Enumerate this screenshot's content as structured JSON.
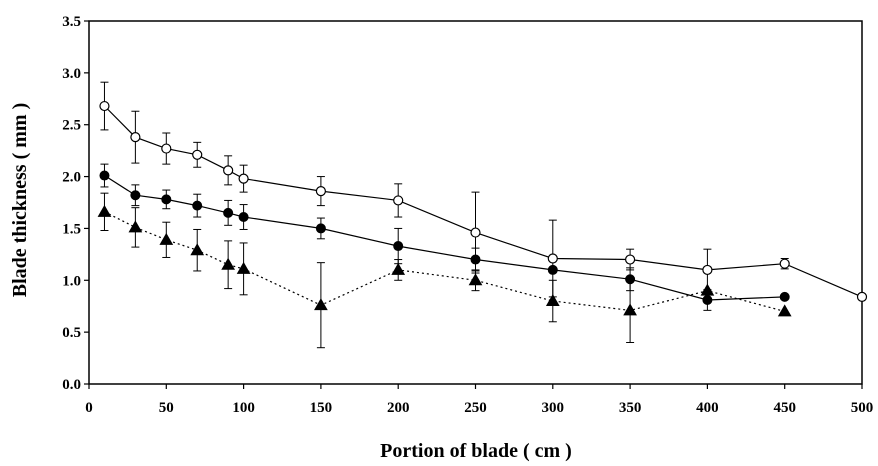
{
  "chart_data": {
    "type": "line",
    "title": "",
    "xlabel": "Portion of blade ( cm )",
    "ylabel": "Blade thickness ( mm )",
    "xlim": [
      0,
      500
    ],
    "ylim": [
      0,
      3.5
    ],
    "x_ticks": [
      "0",
      "50",
      "100",
      "150",
      "200",
      "250",
      "300",
      "350",
      "400",
      "450",
      "500"
    ],
    "y_ticks": [
      "0.0",
      "0.5",
      "1.0",
      "1.5",
      "2.0",
      "2.5",
      "3.0",
      "3.5"
    ],
    "grid": false,
    "legend": "none",
    "series": [
      {
        "marker": "open-circle",
        "line_style": "solid",
        "color": "#000000",
        "x": [
          10,
          30,
          50,
          70,
          90,
          100,
          150,
          200,
          250,
          300,
          350,
          400,
          450,
          500
        ],
        "y": [
          2.68,
          2.38,
          2.27,
          2.21,
          2.06,
          1.98,
          1.86,
          1.77,
          1.46,
          1.21,
          1.2,
          1.1,
          1.16,
          0.84
        ],
        "err": [
          0.23,
          0.25,
          0.15,
          0.12,
          0.14,
          0.13,
          0.14,
          0.16,
          0.39,
          0.37,
          0.1,
          0.2,
          0.05,
          0
        ]
      },
      {
        "marker": "filled-circle",
        "line_style": "solid",
        "color": "#000000",
        "x": [
          10,
          30,
          50,
          70,
          90,
          100,
          150,
          200,
          250,
          300,
          350,
          400,
          450
        ],
        "y": [
          2.01,
          1.82,
          1.78,
          1.72,
          1.65,
          1.61,
          1.5,
          1.33,
          1.2,
          1.1,
          1.01,
          0.81,
          0.84
        ],
        "err": [
          0.11,
          0.1,
          0.09,
          0.11,
          0.12,
          0.12,
          0.1,
          0.17,
          0.11,
          0.0,
          0.11,
          0.1,
          0
        ]
      },
      {
        "marker": "filled-triangle",
        "line_style": "dotted",
        "color": "#000000",
        "x": [
          10,
          30,
          50,
          70,
          90,
          100,
          150,
          200,
          250,
          300,
          350,
          400,
          450
        ],
        "y": [
          1.66,
          1.51,
          1.39,
          1.29,
          1.15,
          1.11,
          0.76,
          1.1,
          1.0,
          0.8,
          0.71,
          0.9,
          0.7
        ],
        "err": [
          0.18,
          0.19,
          0.17,
          0.2,
          0.23,
          0.25,
          0.41,
          0.1,
          0.1,
          0.2,
          0.31,
          0,
          0
        ]
      }
    ]
  }
}
